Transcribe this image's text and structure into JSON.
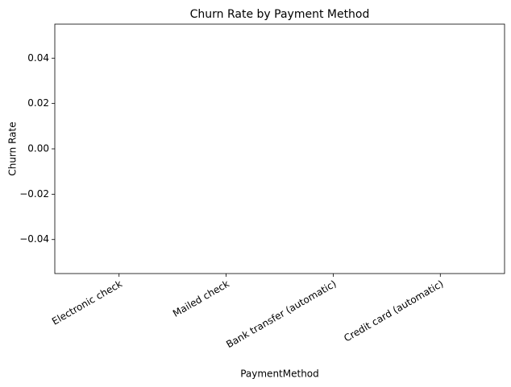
{
  "chart_data": {
    "type": "bar",
    "title": "Churn Rate by Payment Method",
    "x_label": "PaymentMethod",
    "y_label": "Churn Rate",
    "categories": [
      "Electronic check",
      "Mailed check",
      "Bank transfer (automatic)",
      "Credit card (automatic)"
    ],
    "values": [
      0,
      0,
      0,
      0
    ],
    "color": "#1f77b4",
    "ylim": [
      -0.055,
      0.055
    ],
    "yticks": [
      {
        "value": -0.04,
        "label": "−0.04"
      },
      {
        "value": -0.02,
        "label": "−0.02"
      },
      {
        "value": 0,
        "label": "0.00"
      },
      0.02,
      0.04
    ],
    "grid": false
  }
}
